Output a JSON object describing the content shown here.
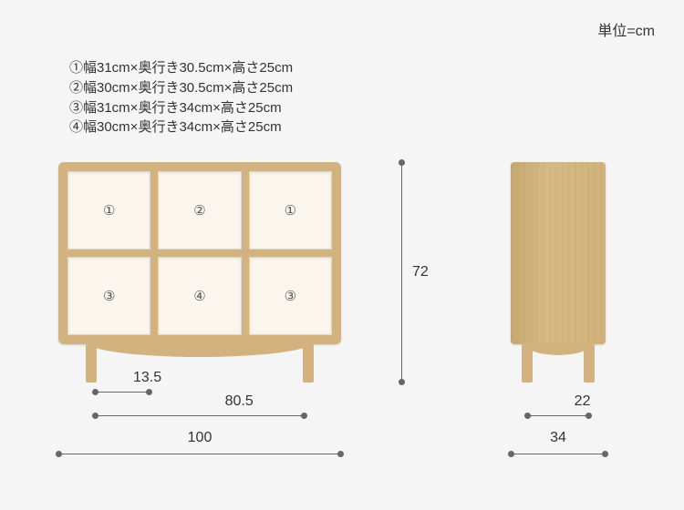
{
  "unit_label": "単位=cm",
  "specs": [
    "①幅31cm×奥行き30.5cm×高さ25cm",
    "②幅30cm×奥行き30.5cm×高さ25cm",
    "③幅31cm×奥行き34cm×高さ25cm",
    "④幅30cm×奥行き34cm×高さ25cm"
  ],
  "cells": [
    "①",
    "②",
    "①",
    "③",
    "④",
    "③"
  ],
  "dimensions": {
    "front_width": "100",
    "leg_span": "80.5",
    "leg_height": "13.5",
    "total_height": "72",
    "side_depth": "34",
    "side_leg_span": "22"
  },
  "colors": {
    "wood": "#d2b380",
    "compartment": "#faf6ee",
    "background": "#f5f5f5",
    "text": "#333333",
    "dim_line": "#666666"
  },
  "diagram": {
    "type": "dimensioned-product-diagram",
    "views": [
      "front",
      "side"
    ],
    "front_grid": {
      "cols": 3,
      "rows": 2
    }
  }
}
